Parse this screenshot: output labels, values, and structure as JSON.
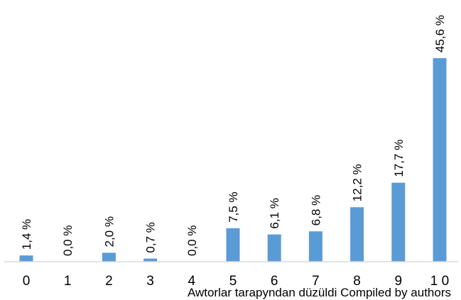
{
  "chart_data": {
    "type": "bar",
    "categories": [
      "0",
      "1",
      "2",
      "3",
      "4",
      "5",
      "6",
      "7",
      "8",
      "9",
      "1 0"
    ],
    "values": [
      1.4,
      0.0,
      2.0,
      0.7,
      0.0,
      7.5,
      6.1,
      6.8,
      12.2,
      17.7,
      45.6
    ],
    "data_labels": [
      "1,4 %",
      "0,0 %",
      "2,0 %",
      "0,7 %",
      "0,0 %",
      "7,5 %",
      "6,1 %",
      "6,8 %",
      "12,2 %",
      "17,7 %",
      "45,6 %"
    ],
    "title": "",
    "xlabel": "",
    "ylabel": "",
    "ylim": [
      0,
      50
    ],
    "grid": false,
    "legend": "none",
    "bar_color": "#5b9bd5",
    "axis_color": "#d9d9d9"
  },
  "source_note": "Awtorlar tarapyndan düzüldi Compiled by authors"
}
